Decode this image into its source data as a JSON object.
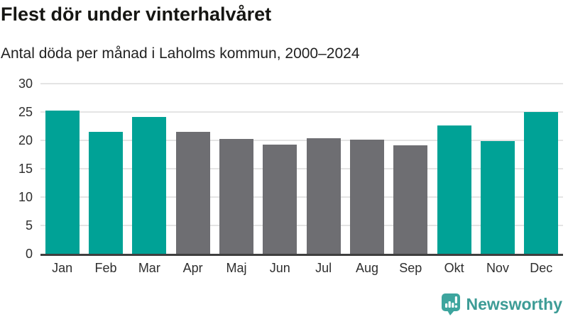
{
  "header": {
    "title": "Flest dör under vinterhalvåret",
    "subtitle": "Antal döda per månad i Laholms kommun, 2000–2024"
  },
  "chart_data": {
    "type": "bar",
    "title": "Flest dör under vinterhalvåret",
    "subtitle": "Antal döda per månad i Laholms kommun, 2000–2024",
    "categories": [
      "Jan",
      "Feb",
      "Mar",
      "Apr",
      "Maj",
      "Jun",
      "Jul",
      "Aug",
      "Sep",
      "Okt",
      "Nov",
      "Dec"
    ],
    "values": [
      25.3,
      21.5,
      24.1,
      21.5,
      20.3,
      19.2,
      20.4,
      20.1,
      19.1,
      22.6,
      19.9,
      25.0
    ],
    "highlight": [
      true,
      true,
      true,
      false,
      false,
      false,
      false,
      false,
      false,
      true,
      true,
      true
    ],
    "highlight_color": "#00a296",
    "base_color": "#6e6e72",
    "grid_color": "#e4e4e4",
    "axis_color": "#3f3f3f",
    "xlabel": "",
    "ylabel": "",
    "ylim": [
      0,
      30
    ],
    "yticks": [
      0,
      5,
      10,
      15,
      20,
      25,
      30
    ],
    "grid": true,
    "legend": "none"
  },
  "footer": {
    "brand": "Newsworthy",
    "brand_color": "#3d9c96",
    "logo_icon": "bar-chart-speech-bubble-icon",
    "logo_color": "#3da59e"
  }
}
